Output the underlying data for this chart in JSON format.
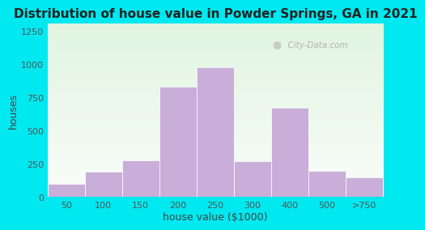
{
  "title": "Distribution of house value in Powder Springs, GA in 2021",
  "xlabel": "house value ($1000)",
  "ylabel": "houses",
  "categories": [
    "50",
    "100",
    "150",
    "200",
    "250",
    "300",
    "400",
    "500",
    ">750"
  ],
  "values": [
    100,
    190,
    275,
    830,
    975,
    270,
    670,
    195,
    150
  ],
  "bar_color": "#c8aed8",
  "ylim": [
    0,
    1300
  ],
  "yticks": [
    0,
    250,
    500,
    750,
    1000,
    1250
  ],
  "bg_figure": "#00e8f0",
  "title_fontsize": 11,
  "axis_label_fontsize": 9,
  "tick_fontsize": 8,
  "watermark_text": "City-Data.com",
  "title_color": "#222222"
}
